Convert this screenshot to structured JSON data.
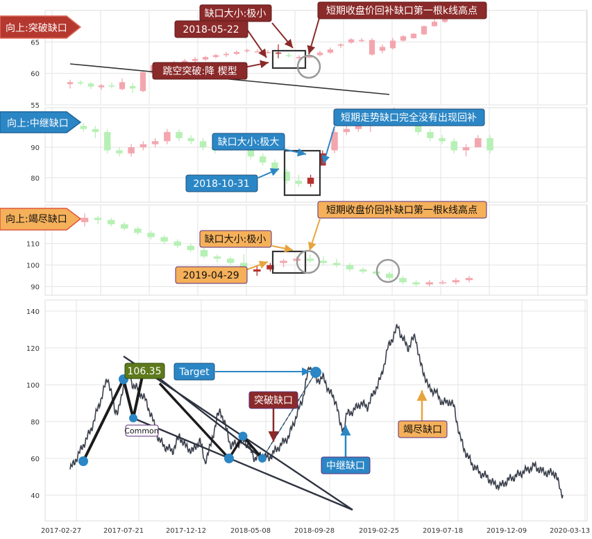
{
  "chart_data": [
    {
      "type": "candlestick",
      "panel": "breakaway",
      "label": "向上:突破缺口",
      "ylim": [
        55,
        70
      ],
      "yticks": [
        55,
        60,
        65
      ],
      "candles": [
        [
          58.3,
          59.0,
          57.6,
          58.6
        ],
        [
          58.6,
          58.9,
          58.1,
          58.4
        ],
        [
          58.4,
          58.6,
          57.5,
          57.9
        ],
        [
          57.8,
          58.3,
          57.4,
          58.1
        ],
        [
          58.1,
          58.6,
          57.6,
          57.9
        ],
        [
          57.5,
          59.2,
          57.3,
          58.6
        ],
        [
          58.0,
          58.5,
          56.9,
          57.6
        ],
        [
          57.2,
          60.4,
          57.0,
          60.2
        ],
        [
          60.0,
          61.5,
          59.8,
          61.3
        ],
        [
          61.0,
          61.8,
          60.9,
          61.5
        ],
        [
          61.4,
          62.0,
          61.0,
          61.8
        ],
        [
          61.6,
          62.3,
          61.5,
          62.0
        ],
        [
          62.0,
          62.6,
          61.7,
          62.3
        ],
        [
          62.2,
          62.8,
          62.0,
          62.6
        ],
        [
          62.6,
          63.1,
          62.4,
          62.9
        ],
        [
          62.9,
          63.4,
          62.6,
          63.1
        ],
        [
          63.1,
          63.6,
          62.9,
          63.4
        ],
        [
          63.6,
          63.9,
          63.3,
          63.7
        ],
        [
          63.4,
          63.9,
          63.3,
          63.5
        ],
        [
          63.3,
          63.7,
          63.1,
          63.4
        ],
        [
          63.3,
          64.6,
          62.4,
          63.2
        ],
        [
          62.9,
          63.3,
          62.5,
          62.8
        ],
        [
          62.4,
          62.9,
          62.1,
          62.6
        ],
        [
          62.5,
          63.1,
          62.4,
          62.9
        ],
        [
          62.9,
          63.6,
          62.7,
          63.3
        ],
        [
          63.3,
          64.1,
          63.1,
          63.8
        ],
        [
          64.4,
          64.8,
          64.0,
          64.6
        ],
        [
          64.9,
          65.6,
          64.7,
          65.4
        ],
        [
          65.2,
          65.6,
          64.9,
          65.3
        ],
        [
          63.0,
          65.6,
          62.8,
          65.3
        ],
        [
          63.6,
          64.6,
          63.2,
          64.2
        ],
        [
          64.0,
          65.6,
          63.8,
          65.2
        ],
        [
          65.2,
          66.1,
          65.0,
          65.9
        ],
        [
          65.6,
          66.4,
          65.5,
          66.3
        ],
        [
          66.2,
          67.6,
          66.1,
          67.5
        ],
        [
          67.5,
          68.6,
          67.4,
          68.2
        ],
        [
          68.2,
          69.1,
          68.0,
          68.8
        ],
        [
          68.8,
          69.6,
          68.6,
          69.3
        ]
      ],
      "annotations": {
        "pattern_label": "跳空突破:降  楔型",
        "date": "2018-05-22",
        "gap_size": "缺口大小:极小",
        "note": "短期收盘价回补缺口第一根k线高点"
      }
    },
    {
      "type": "candlestick",
      "panel": "runaway",
      "label": "向上:中继缺口",
      "ylim": [
        72,
        103
      ],
      "yticks": [
        80,
        90
      ],
      "candles": [
        [
          98,
          100,
          96,
          97
        ],
        [
          97,
          98,
          95,
          96
        ],
        [
          96,
          97,
          93,
          95
        ],
        [
          95,
          96,
          88,
          89
        ],
        [
          89,
          90,
          87,
          88
        ],
        [
          88,
          91,
          87,
          90
        ],
        [
          90,
          92,
          89,
          91
        ],
        [
          91,
          93,
          90,
          92
        ],
        [
          92,
          96,
          91,
          95
        ],
        [
          95,
          96,
          92,
          93
        ],
        [
          93,
          94,
          91,
          92
        ],
        [
          92,
          93,
          89,
          90
        ],
        [
          90,
          91,
          88,
          89
        ],
        [
          89,
          92,
          89,
          91
        ],
        [
          91,
          93,
          89,
          89
        ],
        [
          89,
          90,
          86,
          87
        ],
        [
          87,
          88,
          84,
          85
        ],
        [
          85,
          86,
          81,
          82
        ],
        [
          82,
          83,
          78,
          79
        ],
        [
          79,
          81,
          77,
          78
        ],
        [
          78,
          81,
          77,
          80
        ],
        [
          84,
          89,
          84,
          88
        ],
        [
          89,
          96,
          88,
          95
        ],
        [
          95,
          98,
          94,
          96
        ],
        [
          96,
          99,
          95,
          98
        ],
        [
          98,
          100,
          95,
          98
        ],
        [
          99,
          102,
          98,
          100
        ],
        [
          100,
          103,
          98,
          101
        ],
        [
          101,
          102,
          97,
          98
        ],
        [
          98,
          99,
          94,
          95
        ],
        [
          95,
          96,
          92,
          93
        ],
        [
          93,
          94,
          91,
          92
        ],
        [
          92,
          93,
          88,
          89
        ],
        [
          89,
          91,
          87,
          90
        ],
        [
          90,
          94,
          90,
          93
        ],
        [
          93,
          94,
          88,
          89
        ]
      ],
      "annotations": {
        "date": "2018-10-31",
        "gap_size": "缺口大小:极大",
        "note": "短期走势缺口完全没有出现回补"
      }
    },
    {
      "type": "candlestick",
      "panel": "exhaustion",
      "label": "向上:竭尽缺口",
      "ylim": [
        86,
        128
      ],
      "yticks": [
        90,
        100,
        110
      ],
      "candles": [
        [
          120,
          124,
          118,
          122
        ],
        [
          122,
          123,
          119,
          121
        ],
        [
          121,
          122,
          118,
          119
        ],
        [
          119,
          120,
          116,
          117
        ],
        [
          117,
          118,
          114,
          115
        ],
        [
          115,
          116,
          112,
          113
        ],
        [
          113,
          114,
          110,
          111
        ],
        [
          111,
          112,
          108,
          109
        ],
        [
          109,
          110,
          106,
          107
        ],
        [
          107,
          108,
          103,
          104
        ],
        [
          104,
          105,
          101,
          103
        ],
        [
          103,
          104,
          100,
          101
        ],
        [
          101,
          105,
          96,
          97
        ],
        [
          97,
          100,
          95,
          98
        ],
        [
          98,
          101,
          97,
          100
        ],
        [
          101,
          103,
          99,
          102
        ],
        [
          102,
          104,
          101,
          103
        ],
        [
          103,
          105,
          101,
          102
        ],
        [
          102,
          104,
          100,
          101
        ],
        [
          101,
          103,
          99,
          100
        ],
        [
          100,
          101,
          97,
          98
        ],
        [
          98,
          99,
          96,
          97
        ],
        [
          97,
          98,
          95,
          96
        ],
        [
          96,
          97,
          93,
          94
        ],
        [
          94,
          95,
          91,
          92
        ],
        [
          92,
          93,
          90,
          91
        ],
        [
          91,
          93,
          90,
          92
        ],
        [
          92,
          93,
          91,
          92
        ],
        [
          92,
          94,
          91,
          93
        ],
        [
          93,
          95,
          92,
          94
        ]
      ],
      "annotations": {
        "date": "2019-04-29",
        "gap_size": "缺口大小:极小",
        "note": "短期收盘价回补缺口第一根k线高点"
      }
    },
    {
      "type": "line",
      "panel": "overview",
      "ylim": [
        26,
        146
      ],
      "yticks": [
        40,
        60,
        80,
        100,
        120,
        140
      ],
      "x_tick_labels": [
        "2017-02-27",
        "2017-07-21",
        "2017-12-12",
        "2018-05-08",
        "2018-09-28",
        "2019-02-25",
        "2019-07-18",
        "2019-12-09",
        "2020-03-13"
      ],
      "anchors": [
        [
          0,
          54
        ],
        [
          5,
          57
        ],
        [
          15,
          64
        ],
        [
          30,
          75
        ],
        [
          45,
          92
        ],
        [
          55,
          104
        ],
        [
          60,
          96
        ],
        [
          65,
          86
        ],
        [
          70,
          86
        ],
        [
          75,
          92
        ],
        [
          80,
          104
        ],
        [
          85,
          110
        ],
        [
          90,
          101
        ],
        [
          100,
          97
        ],
        [
          110,
          92
        ],
        [
          120,
          82
        ],
        [
          130,
          70
        ],
        [
          140,
          66
        ],
        [
          150,
          64
        ],
        [
          155,
          68
        ],
        [
          160,
          72
        ],
        [
          170,
          66
        ],
        [
          180,
          64
        ],
        [
          190,
          70
        ],
        [
          197,
          58
        ],
        [
          205,
          66
        ],
        [
          215,
          82
        ],
        [
          220,
          86
        ],
        [
          227,
          78
        ],
        [
          235,
          67
        ],
        [
          245,
          68
        ],
        [
          255,
          70
        ],
        [
          262,
          66
        ],
        [
          270,
          60
        ],
        [
          280,
          62
        ],
        [
          290,
          60
        ],
        [
          300,
          64
        ],
        [
          310,
          68
        ],
        [
          320,
          72
        ],
        [
          330,
          82
        ],
        [
          340,
          92
        ],
        [
          350,
          110
        ],
        [
          355,
          108
        ],
        [
          360,
          102
        ],
        [
          370,
          104
        ],
        [
          380,
          96
        ],
        [
          390,
          90
        ],
        [
          395,
          78
        ],
        [
          400,
          76
        ],
        [
          405,
          84
        ],
        [
          415,
          86
        ],
        [
          425,
          90
        ],
        [
          435,
          88
        ],
        [
          445,
          96
        ],
        [
          455,
          104
        ],
        [
          465,
          120
        ],
        [
          475,
          128
        ],
        [
          480,
          132
        ],
        [
          485,
          126
        ],
        [
          495,
          120
        ],
        [
          505,
          127
        ],
        [
          512,
          112
        ],
        [
          518,
          106
        ],
        [
          525,
          98
        ],
        [
          535,
          96
        ],
        [
          545,
          90
        ],
        [
          555,
          91
        ],
        [
          562,
          88
        ],
        [
          570,
          72
        ],
        [
          580,
          62
        ],
        [
          590,
          56
        ],
        [
          600,
          52
        ],
        [
          610,
          50
        ],
        [
          620,
          46
        ],
        [
          630,
          45
        ],
        [
          640,
          48
        ],
        [
          650,
          50
        ],
        [
          660,
          52
        ],
        [
          670,
          54
        ],
        [
          680,
          56
        ],
        [
          690,
          53
        ],
        [
          700,
          52
        ],
        [
          710,
          52
        ],
        [
          718,
          42
        ],
        [
          722,
          40
        ]
      ],
      "target_value": "106.35",
      "labels": {
        "target": "Target",
        "common": "Common",
        "breakaway": "突破缺口",
        "runaway": "中继缺口",
        "exhaustion": "竭尽缺口"
      }
    }
  ]
}
